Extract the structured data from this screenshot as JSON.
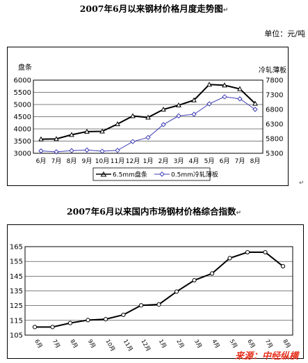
{
  "titles": {
    "chart1": "2007年6月以来钢材价格月度走势图",
    "chart1_unit": "单位：元/吨",
    "chart2": "2007年6月以来国内市场钢材价格综合指数"
  },
  "source_text": "来源：中经纵横",
  "paragraph_mark": "↵",
  "colors": {
    "series1": "#000000",
    "series2": "#3c3cb4",
    "plot_bg": "#ffffff",
    "source": "#e8321e"
  },
  "chart_data": [
    {
      "type": "line",
      "categories": [
        "6月",
        "7月",
        "8月",
        "9月",
        "10月",
        "11月",
        "12月",
        "1月",
        "2月",
        "3月",
        "4月",
        "5月",
        "6月",
        "7月",
        "8月"
      ],
      "left_axis_label": "盘条",
      "right_axis_label": "冷轧薄板",
      "ylim_left": [
        3000,
        6000
      ],
      "yticks_left": [
        3000,
        3500,
        4000,
        4500,
        5000,
        5500,
        6000
      ],
      "ylim_right": [
        5300,
        7800
      ],
      "yticks_right": [
        5300,
        5800,
        6300,
        6800,
        7300,
        7800
      ],
      "grid": true,
      "legend_position": "bottom",
      "series": [
        {
          "name": "6.5mm盘条",
          "axis": "left",
          "marker": "triangle",
          "values": [
            3580,
            3590,
            3760,
            3890,
            3900,
            4200,
            4530,
            4470,
            4800,
            4970,
            5180,
            5820,
            5790,
            5640,
            5040
          ]
        },
        {
          "name": "0.5mm冷轧薄板",
          "axis": "right",
          "marker": "diamond",
          "values": [
            5380,
            5350,
            5390,
            5410,
            5370,
            5400,
            5700,
            5840,
            6280,
            6580,
            6630,
            6990,
            7230,
            7160,
            6800
          ]
        }
      ]
    },
    {
      "type": "line",
      "categories": [
        "6月",
        "7月",
        "8月",
        "9月",
        "10月",
        "11月",
        "12月",
        "1月",
        "2月",
        "3月",
        "4月",
        "5月",
        "6月",
        "7月",
        "8月"
      ],
      "ylim": [
        105,
        165
      ],
      "yticks": [
        105,
        115,
        125,
        135,
        145,
        155,
        165
      ],
      "grid": true,
      "series": [
        {
          "marker": "circle",
          "values": [
            110.5,
            110.5,
            113.2,
            115.2,
            115.8,
            118.8,
            125.2,
            125.8,
            134.5,
            142.2,
            146.8,
            157.2,
            161.2,
            161.2,
            151.7
          ]
        }
      ]
    }
  ]
}
